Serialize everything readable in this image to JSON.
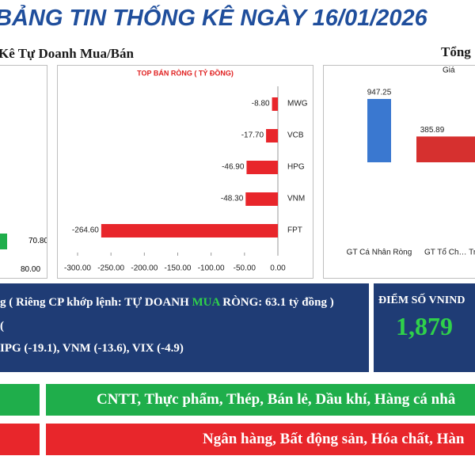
{
  "header": {
    "title": "BẢNG TIN THỐNG KÊ NGÀY 16/01/2026",
    "left_heading": "Kê Tự Doanh Mua/Bán",
    "right_heading": "Tổng"
  },
  "left_panel": {
    "value_label": "70.80",
    "tick_label": "80.00"
  },
  "chart_data": [
    {
      "type": "hbar",
      "title": "TOP BÁN RÒNG ( TỶ ĐỒNG)",
      "categories": [
        "MWG",
        "VCB",
        "HPG",
        "VNM",
        "FPT"
      ],
      "values": [
        -8.8,
        -17.7,
        -46.9,
        -48.3,
        -264.6
      ],
      "value_labels": [
        "-8.80",
        "-17.70",
        "-46.90",
        "-48.30",
        "-264.60"
      ],
      "color": "#e8262b",
      "xlim": [
        -300,
        0
      ],
      "xticks": [
        {
          "value": -300,
          "label": "-300.00"
        },
        {
          "value": -250,
          "label": "-250.00"
        },
        {
          "value": -200,
          "label": "-200.00"
        },
        {
          "value": -150,
          "label": "-150.00"
        },
        {
          "value": -100,
          "label": "-100.00"
        },
        {
          "value": -50,
          "label": "-50.00"
        },
        {
          "value": 0,
          "label": "0.00"
        }
      ]
    },
    {
      "type": "vbar",
      "title": "Giá",
      "categories": [
        "GT Cá Nhân Ròng",
        "GT Tổ Ch… Trong Nư… Ròng"
      ],
      "values": [
        947.25,
        385.89
      ],
      "colors": [
        "#3a78d0",
        "#d6302f"
      ]
    }
  ],
  "summary": {
    "line1_pre": "g ( Riêng CP khớp lệnh: TỰ DOANH ",
    "line1_highlight": "MUA",
    "line1_post": " RÒNG: 63.1 tỷ đồng )",
    "line2": "(",
    "line3": "IPG (-19.1), VNM (-13.6), VIX (-4.9)"
  },
  "index_box": {
    "label": "ĐIỂM SỐ VNIND",
    "value": "1,879"
  },
  "sectors": {
    "up": "CNTT, Thực phẩm, Thép, Bán lẻ, Dầu khí, Hàng cá nhâ",
    "down": "Ngân hàng, Bất động sản, Hóa chất, Hàn"
  }
}
